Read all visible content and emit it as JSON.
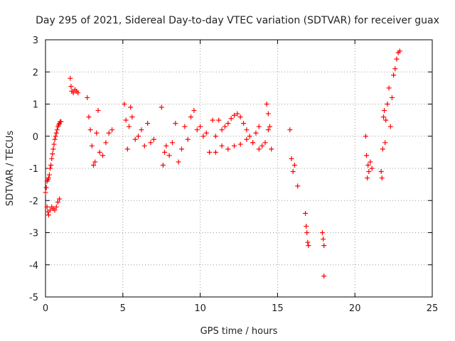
{
  "chart_data": {
    "type": "scatter",
    "title": "Day 295 of 2021, Sidereal Day-to-day VTEC variation (SDTVAR) for receiver guax",
    "xlabel": "GPS time / hours",
    "ylabel": "SDTVAR / TECUs",
    "xlim": [
      0,
      25
    ],
    "ylim": [
      -5,
      3
    ],
    "xticks": [
      0,
      5,
      10,
      15,
      20,
      25
    ],
    "yticks": [
      3,
      2,
      1,
      0,
      -1,
      -2,
      -3,
      -4,
      -5
    ],
    "grid": true,
    "marker": "+",
    "color": "#ff0000",
    "series": [
      {
        "name": "SDTVAR",
        "x": [
          0.0,
          0.05,
          0.1,
          0.15,
          0.2,
          0.25,
          0.3,
          0.35,
          0.4,
          0.45,
          0.5,
          0.55,
          0.6,
          0.65,
          0.7,
          0.75,
          0.8,
          0.85,
          0.9,
          0.95,
          1.0,
          0.1,
          0.15,
          0.2,
          0.3,
          0.4,
          0.5,
          0.6,
          0.7,
          0.8,
          0.9,
          1.6,
          1.65,
          1.7,
          1.8,
          1.9,
          2.0,
          2.1,
          2.7,
          2.8,
          2.9,
          3.0,
          3.1,
          3.2,
          3.3,
          3.4,
          3.5,
          3.7,
          3.9,
          4.1,
          4.3,
          5.1,
          5.2,
          5.3,
          5.4,
          5.5,
          5.6,
          5.8,
          6.0,
          6.2,
          6.4,
          6.6,
          6.8,
          7.0,
          7.5,
          7.6,
          7.7,
          7.8,
          8.0,
          8.2,
          8.4,
          8.6,
          8.8,
          9.0,
          9.2,
          9.4,
          9.6,
          9.8,
          10.0,
          10.2,
          10.4,
          10.6,
          10.8,
          11.0,
          11.2,
          11.4,
          11.6,
          11.8,
          12.0,
          12.2,
          12.4,
          12.6,
          12.8,
          13.0,
          13.2,
          13.4,
          13.6,
          13.8,
          14.0,
          14.2,
          14.4,
          14.6,
          11.0,
          11.4,
          11.8,
          12.2,
          12.6,
          13.0,
          13.4,
          13.8,
          14.3,
          14.4,
          14.5,
          15.8,
          15.9,
          16.0,
          16.1,
          16.3,
          16.8,
          16.85,
          16.9,
          16.95,
          17.0,
          17.9,
          17.95,
          18.0,
          18.0,
          20.7,
          20.75,
          20.8,
          20.85,
          20.9,
          21.0,
          21.1,
          21.7,
          21.75,
          21.8,
          21.85,
          21.9,
          21.95,
          22.0,
          22.1,
          22.2,
          22.3,
          22.4,
          22.5,
          22.6,
          22.7,
          22.8,
          22.9
        ],
        "values": [
          -1.75,
          -1.6,
          -1.4,
          -1.35,
          -1.3,
          -1.2,
          -1.0,
          -0.9,
          -0.7,
          -0.55,
          -0.4,
          -0.25,
          -0.1,
          0.0,
          0.1,
          0.2,
          0.3,
          0.35,
          0.4,
          0.45,
          0.45,
          -2.2,
          -2.35,
          -2.45,
          -2.3,
          -2.2,
          -2.25,
          -2.3,
          -2.2,
          -2.05,
          -1.95,
          1.8,
          1.55,
          1.4,
          1.35,
          1.45,
          1.4,
          1.35,
          1.2,
          0.6,
          0.2,
          -0.3,
          -0.9,
          -0.8,
          0.1,
          0.8,
          -0.5,
          -0.6,
          -0.2,
          0.1,
          0.2,
          1.0,
          0.5,
          -0.4,
          0.3,
          0.9,
          0.6,
          -0.1,
          0.0,
          0.2,
          -0.3,
          0.4,
          -0.2,
          -0.1,
          0.9,
          -0.9,
          -0.5,
          -0.3,
          -0.6,
          -0.2,
          0.4,
          -0.8,
          -0.4,
          0.3,
          -0.1,
          0.6,
          0.8,
          0.2,
          0.3,
          0.0,
          0.1,
          -0.5,
          0.5,
          0.0,
          0.5,
          0.2,
          0.3,
          0.4,
          0.55,
          0.65,
          0.7,
          0.6,
          0.4,
          0.2,
          0.0,
          -0.2,
          0.1,
          0.3,
          -0.3,
          -0.2,
          0.2,
          -0.4,
          -0.5,
          -0.3,
          -0.4,
          -0.3,
          -0.25,
          -0.1,
          -0.2,
          -0.4,
          1.0,
          0.7,
          0.3,
          0.2,
          -0.7,
          -1.1,
          -0.9,
          -1.55,
          -2.4,
          -2.8,
          -3.0,
          -3.3,
          -3.4,
          -3.0,
          -3.2,
          -3.4,
          -4.35,
          0.0,
          -0.6,
          -1.3,
          -0.9,
          -1.1,
          -0.8,
          -1.0,
          -1.1,
          -1.3,
          -0.4,
          0.6,
          0.8,
          -0.2,
          0.5,
          1.0,
          1.5,
          0.3,
          1.2,
          1.9,
          2.1,
          2.4,
          2.6,
          2.65
        ]
      }
    ]
  }
}
